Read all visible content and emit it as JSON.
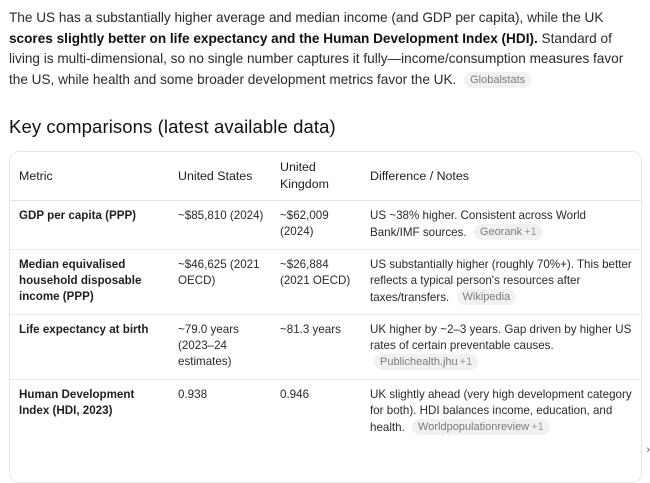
{
  "intro": {
    "lead": "The US has a substantially higher average and median income (and GDP per capita), while the UK",
    "bold": "scores slightly better on life expectancy and the Human Development Index (HDI).",
    "rest": " Standard of living is multi-dimensional, so no single number captures it fully—income/consumption measures favor the US, while health and some broader development metrics favor the UK.",
    "source": "Globalstats"
  },
  "section_title": "Key comparisons (latest available data)",
  "table": {
    "headers": [
      "Metric",
      "United States",
      "United Kingdom",
      "Difference / Notes"
    ],
    "rows": [
      {
        "metric": "GDP per capita (PPP)",
        "us": "~$85,810 (2024)",
        "uk": "~$62,009 (2024)",
        "notes": "US ~38% higher. Consistent across World Bank/IMF sources.",
        "source": "Georank",
        "source_extra": "+1"
      },
      {
        "metric": "Median equivalised household disposable income (PPP)",
        "us": "~$46,625 (2021 OECD)",
        "uk": "~$26,884 (2021 OECD)",
        "notes": "US substantially higher (roughly 70%+). This better reflects a typical person's resources after taxes/transfers.",
        "source": "Wikipedia",
        "source_extra": ""
      },
      {
        "metric": "Life expectancy at birth",
        "us": "~79.0 years (2023–24 estimates)",
        "uk": "~81.3 years",
        "notes": "UK higher by ~2–3 years. Gap driven by higher US rates of certain preventable causes.",
        "source": "Publichealth.jhu",
        "source_extra": "+1"
      },
      {
        "metric": "Human Development Index (HDI, 2023)",
        "us": "0.938",
        "uk": "0.946",
        "notes": "UK slightly ahead (very high development category for both). HDI balances income, education, and health.",
        "source": "Worldpopulationreview",
        "source_extra": "+1"
      }
    ]
  },
  "icons": {
    "scroll": "chevron-right-icon"
  }
}
